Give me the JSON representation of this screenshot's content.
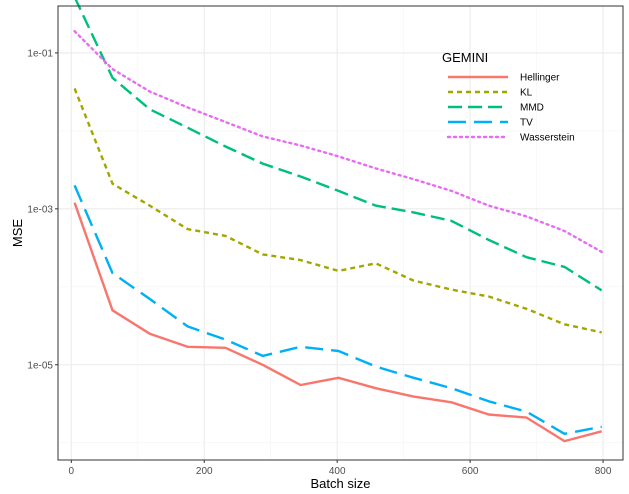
{
  "chart_data": {
    "type": "line",
    "title": "",
    "xlabel": "Batch size",
    "ylabel": "MSE",
    "y_scale": "log10",
    "xlim": [
      -20,
      830
    ],
    "ylim": [
      6e-07,
      0.4
    ],
    "x_ticks": [
      0,
      200,
      400,
      600,
      800
    ],
    "x_tick_labels": [
      "0",
      "200",
      "400",
      "600",
      "800"
    ],
    "y_ticks": [
      1e-05,
      0.001,
      0.1
    ],
    "y_tick_labels": [
      "1e-05",
      "1e-03",
      "1e-01"
    ],
    "grid": true,
    "legend": {
      "title": "GEMINI",
      "position": "top-right-inside"
    },
    "x": [
      5,
      62,
      118,
      175,
      232,
      288,
      345,
      402,
      458,
      515,
      572,
      628,
      685,
      742,
      798
    ],
    "series": [
      {
        "name": "Hellinger",
        "color": "#F8766D",
        "dash": "solid",
        "values": [
          0.0012,
          5e-05,
          2.5e-05,
          1.7e-05,
          1.65e-05,
          1e-05,
          5.5e-06,
          6.8e-06,
          5e-06,
          3.9e-06,
          3.3e-06,
          2.3e-06,
          2.1e-06,
          1.05e-06,
          1.4e-06
        ]
      },
      {
        "name": "KL",
        "color": "#A3A500",
        "dash": "short",
        "values": [
          0.035,
          0.0021,
          0.0011,
          0.00055,
          0.00045,
          0.00026,
          0.00022,
          0.00016,
          0.0002,
          0.00012,
          9.2e-05,
          7.5e-05,
          5.2e-05,
          3.3e-05,
          2.6e-05
        ]
      },
      {
        "name": "MMD",
        "color": "#00BF7D",
        "dash": "long",
        "values": [
          0.52,
          0.048,
          0.019,
          0.011,
          0.0063,
          0.0038,
          0.0026,
          0.0017,
          0.0011,
          0.0009,
          0.0007,
          0.0004,
          0.00024,
          0.00018,
          9e-05
        ]
      },
      {
        "name": "TV",
        "color": "#00B0F6",
        "dash": "longer",
        "values": [
          0.002,
          0.00015,
          7e-05,
          3.1e-05,
          2.1e-05,
          1.3e-05,
          1.7e-05,
          1.5e-05,
          9.5e-06,
          6.8e-06,
          5e-06,
          3.4e-06,
          2.5e-06,
          1.3e-06,
          1.6e-06
        ]
      },
      {
        "name": "Wasserstein",
        "color": "#E76BF3",
        "dash": "dotted",
        "values": [
          0.19,
          0.062,
          0.032,
          0.02,
          0.013,
          0.0085,
          0.0065,
          0.0047,
          0.0033,
          0.0024,
          0.0017,
          0.0011,
          0.0008,
          0.00052,
          0.00028
        ]
      }
    ]
  }
}
